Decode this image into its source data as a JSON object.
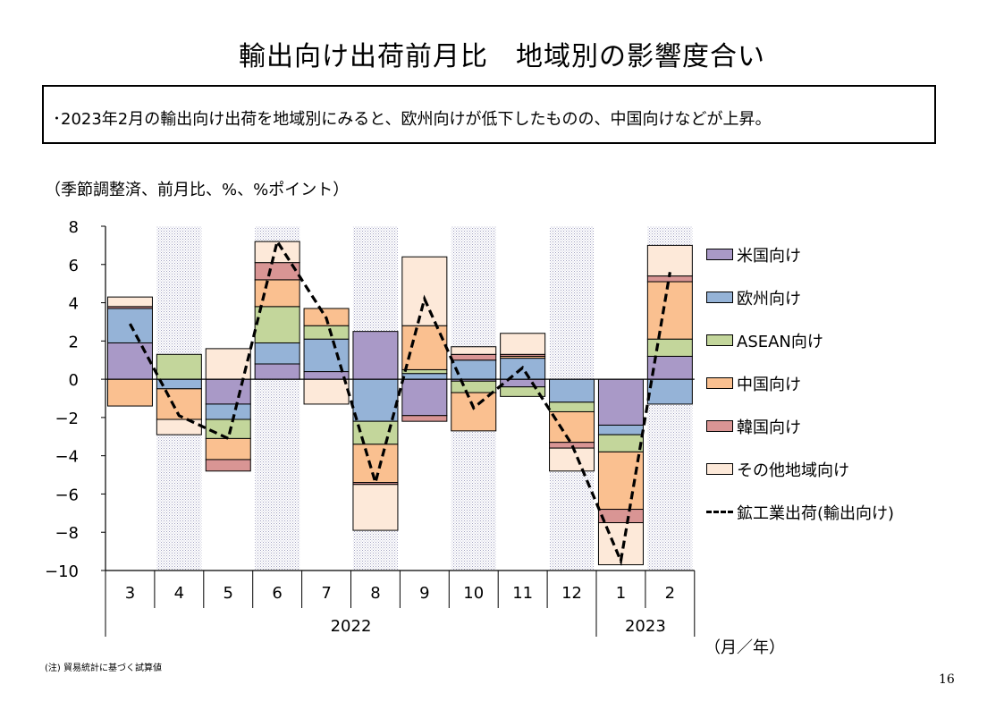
{
  "page": {
    "title": "輸出向け出荷前月比　地域別の影響度合い",
    "summary": "･2023年2月の輸出向け出荷を地域別にみると、欧州向けが低下したものの、中国向けなどが上昇。",
    "unit_label": "（季節調整済、前月比、%、%ポイント）",
    "axis_unit": "（月／年）",
    "note": "(注) 貿易統計に基づく試算値",
    "page_number": "16"
  },
  "chart_data": {
    "type": "bar",
    "stacked": true,
    "categories": [
      "3",
      "4",
      "5",
      "6",
      "7",
      "8",
      "9",
      "10",
      "11",
      "12",
      "1",
      "2"
    ],
    "year_labels": [
      {
        "label": "2022",
        "from": 0,
        "to": 9
      },
      {
        "label": "2023",
        "from": 10,
        "to": 11
      }
    ],
    "shaded_categories": [
      1,
      3,
      5,
      7,
      9,
      11
    ],
    "ylim": [
      -10,
      8
    ],
    "yticks": [
      8,
      6,
      4,
      2,
      0,
      -2,
      -4,
      -6,
      -8,
      -10
    ],
    "ytick_labels": [
      "8",
      "6",
      "4",
      "2",
      "0",
      "−2",
      "−4",
      "−6",
      "−8",
      "−10"
    ],
    "series": [
      {
        "name": "米国向け",
        "color": "#a999c7",
        "values": [
          1.9,
          0.0,
          -1.3,
          0.8,
          0.4,
          2.5,
          -1.9,
          -0.1,
          -0.4,
          0.0,
          -2.4,
          1.2
        ]
      },
      {
        "name": "欧州向け",
        "color": "#95b3d7",
        "values": [
          1.8,
          -0.5,
          -0.8,
          1.1,
          1.7,
          -2.2,
          0.3,
          1.0,
          1.1,
          -1.2,
          -0.5,
          -1.3
        ]
      },
      {
        "name": "ASEAN向け",
        "color": "#c3d69b",
        "values": [
          0.0,
          1.3,
          -1.0,
          1.9,
          0.7,
          -1.2,
          0.2,
          -0.6,
          -0.5,
          -0.5,
          -0.9,
          0.9
        ]
      },
      {
        "name": "中国向け",
        "color": "#fac090",
        "values": [
          -1.4,
          -1.6,
          -1.1,
          1.4,
          0.9,
          -2.0,
          2.3,
          -2.0,
          0.1,
          -1.6,
          -3.0,
          3.0
        ]
      },
      {
        "name": "韓国向け",
        "color": "#d99594",
        "values": [
          0.1,
          0.0,
          -0.6,
          0.9,
          0.0,
          -0.1,
          -0.3,
          0.3,
          0.1,
          -0.3,
          -0.7,
          0.3
        ]
      },
      {
        "name": "その他地域向け",
        "color": "#fde9d9",
        "values": [
          0.5,
          -0.8,
          1.6,
          1.1,
          -1.3,
          -2.4,
          3.6,
          0.4,
          1.1,
          -1.2,
          -2.2,
          1.6
        ]
      }
    ],
    "line": {
      "name": "鉱工業出荷(輸出向け)",
      "values": [
        2.9,
        -1.9,
        -3.1,
        7.2,
        3.2,
        -5.4,
        4.2,
        -1.5,
        0.6,
        -3.4,
        -9.5,
        5.6
      ]
    }
  }
}
